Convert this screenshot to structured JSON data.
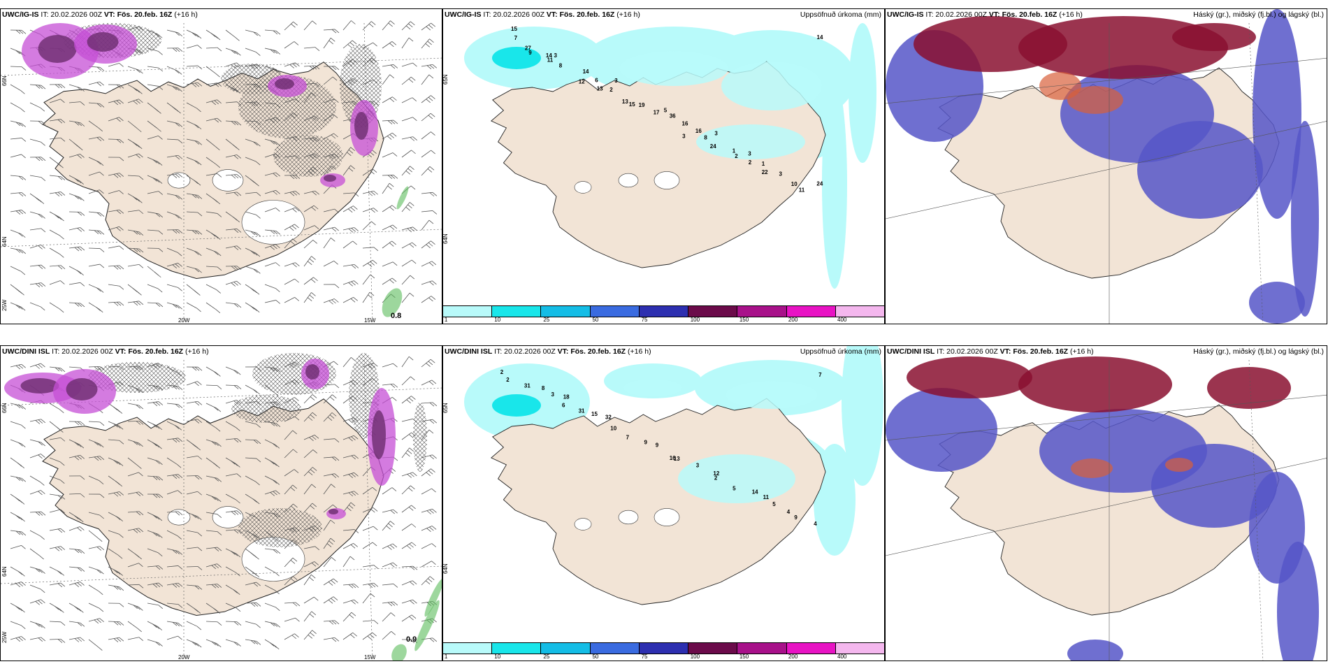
{
  "panels": [
    {
      "id": "p1",
      "header_model": "UWC/IG-IS",
      "header_it": " IT: 20.02.2026 00Z ",
      "header_vt_label": "VT: Fös. 20.feb. 16Z",
      "header_lead": " (+16 h)",
      "right_title": "",
      "corner_value": "0.8",
      "lat_labels": [
        "66N",
        "64N",
        "25W"
      ],
      "lon_labels": [
        "20W",
        "15W"
      ]
    },
    {
      "id": "p2",
      "header_model": "UWC/IG-IS",
      "header_it": " IT: 20.02.2026 00Z ",
      "header_vt_label": "VT: Fös. 20.feb. 16Z",
      "header_lead": " (+16 h)",
      "right_title": "Uppsöfnuð úrkoma (mm)",
      "corner_value": "",
      "lat_labels": [
        "65N",
        "64N"
      ],
      "lon_labels": []
    },
    {
      "id": "p3",
      "header_model": "UWC/IG-IS",
      "header_it": " IT: 20.02.2026 00Z ",
      "header_vt_label": "VT: Fös. 20.feb. 16Z",
      "header_lead": " (+16 h)",
      "right_title": "Háský (gr.), miðský (fj.bl.) og lágský (bl.)",
      "corner_value": "",
      "lat_labels": [],
      "lon_labels": []
    },
    {
      "id": "p4",
      "header_model": "UWC/DINI ISL",
      "header_it": " IT: 20.02.2026 00Z ",
      "header_vt_label": "VT: Fös. 20.feb. 16Z",
      "header_lead": " (+16 h)",
      "right_title": "",
      "corner_value": "0.9",
      "lat_labels": [
        "66N",
        "64N",
        "25W"
      ],
      "lon_labels": [
        "20W",
        "15W"
      ]
    },
    {
      "id": "p5",
      "header_model": "UWC/DINI ISL",
      "header_it": " IT: 20.02.2026 00Z ",
      "header_vt_label": "VT: Fös. 20.feb. 16Z",
      "header_lead": " (+16 h)",
      "right_title": "Uppsöfnuð úrkoma (mm)",
      "corner_value": "",
      "lat_labels": [
        "65N",
        "64N"
      ],
      "lon_labels": []
    },
    {
      "id": "p6",
      "header_model": "UWC/DINI ISL",
      "header_it": " IT: 20.02.2026 00Z ",
      "header_vt_label": "VT: Fös. 20.feb. 16Z",
      "header_lead": " (+16 h)",
      "right_title": "Háský (gr.), miðský (fj.bl.) og lágský (bl.)",
      "corner_value": "",
      "lat_labels": [],
      "lon_labels": []
    }
  ],
  "precip_colorbar": {
    "colors": [
      "#b8fafa",
      "#19e6ea",
      "#14bde6",
      "#3a6be0",
      "#2d2fb0",
      "#6b0b4a",
      "#a8118a",
      "#e813c4",
      "#f4b7ee"
    ],
    "labels": [
      "1",
      "10",
      "25",
      "50",
      "75",
      "100",
      "150",
      "200",
      "400"
    ]
  },
  "precip_values_top": [
    "15",
    "3",
    "3",
    "5",
    "3",
    "1",
    "24",
    "14",
    "6",
    "19",
    "16",
    "3",
    "10",
    "27",
    "14",
    "13",
    "16",
    "1",
    "3",
    "7",
    "8",
    "2",
    "36",
    "24",
    "22",
    "14",
    "11",
    "13",
    "17",
    "8",
    "2",
    "11",
    "9",
    "12",
    "15",
    "3",
    "2"
  ],
  "precip_values_bottom": [
    "2",
    "18",
    "32",
    "9",
    "12",
    "11",
    "4",
    "8",
    "15",
    "9",
    "3",
    "14",
    "9",
    "31",
    "31",
    "7",
    "13",
    "5",
    "4",
    "2",
    "6",
    "10",
    "16",
    "2",
    "5",
    "7",
    "3"
  ],
  "colors": {
    "land": "#f2e4d6",
    "land_dark": "#e8d6c4",
    "sea": "#ffffff",
    "snow_cyan": "#b8fafa",
    "purple": "#c64fd6",
    "purple_dark": "#6b2d6e",
    "hatch": "#444444",
    "cloud_low": "#5656c8",
    "cloud_high": "#8a1030",
    "cloud_mid": "#d9603a"
  }
}
